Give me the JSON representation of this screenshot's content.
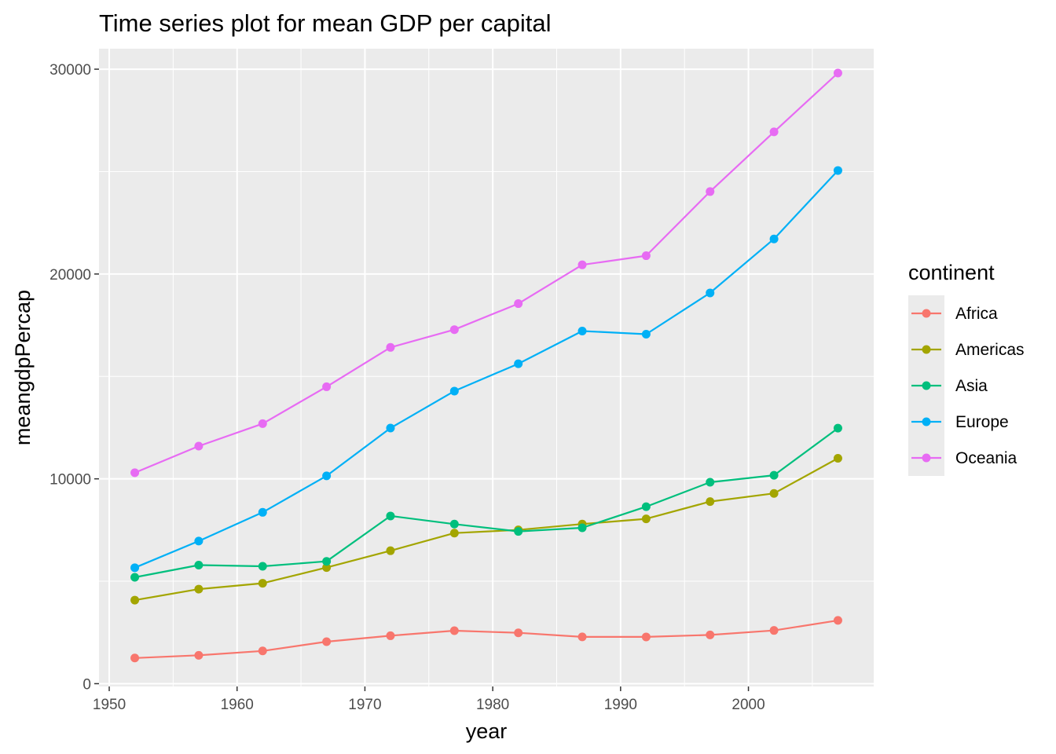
{
  "chart_data": {
    "type": "line",
    "title": "Time series plot for mean GDP per capital",
    "xlabel": "year",
    "ylabel": "meangdpPercap",
    "xlim": [
      1949.2,
      2009.8
    ],
    "ylim": [
      -136,
      31000
    ],
    "x_ticks": [
      1950,
      1960,
      1970,
      1980,
      1990,
      2000
    ],
    "x_tick_labels": [
      "1950",
      "1960",
      "1970",
      "1980",
      "1990",
      "2000"
    ],
    "y_ticks": [
      0,
      10000,
      20000,
      30000
    ],
    "y_tick_labels": [
      "0",
      "10000",
      "20000",
      "30000"
    ],
    "grid": true,
    "x": [
      1952,
      1957,
      1962,
      1967,
      1972,
      1977,
      1982,
      1987,
      1992,
      1997,
      2002,
      2007
    ],
    "legend": {
      "title": "continent",
      "position": "right"
    },
    "series": [
      {
        "name": "Africa",
        "color": "#F8766D",
        "values": [
          1253,
          1385,
          1598,
          2050,
          2340,
          2586,
          2482,
          2283,
          2282,
          2379,
          2599,
          3089
        ]
      },
      {
        "name": "Americas",
        "color": "#A3A500",
        "values": [
          4079,
          4616,
          4902,
          5668,
          6491,
          7352,
          7507,
          7793,
          8045,
          8889,
          9288,
          11003
        ]
      },
      {
        "name": "Asia",
        "color": "#00BF7D",
        "values": [
          5195,
          5788,
          5729,
          5971,
          8187,
          7791,
          7434,
          7608,
          8640,
          9834,
          10174,
          12473
        ]
      },
      {
        "name": "Europe",
        "color": "#00B0F6",
        "values": [
          5661,
          6963,
          8365,
          10144,
          12480,
          14284,
          15618,
          17214,
          17062,
          19077,
          21712,
          25054
        ]
      },
      {
        "name": "Oceania",
        "color": "#E76BF3",
        "values": [
          10298,
          11599,
          12696,
          14495,
          16417,
          17284,
          18555,
          20448,
          20894,
          24024,
          26939,
          29810
        ]
      }
    ]
  }
}
